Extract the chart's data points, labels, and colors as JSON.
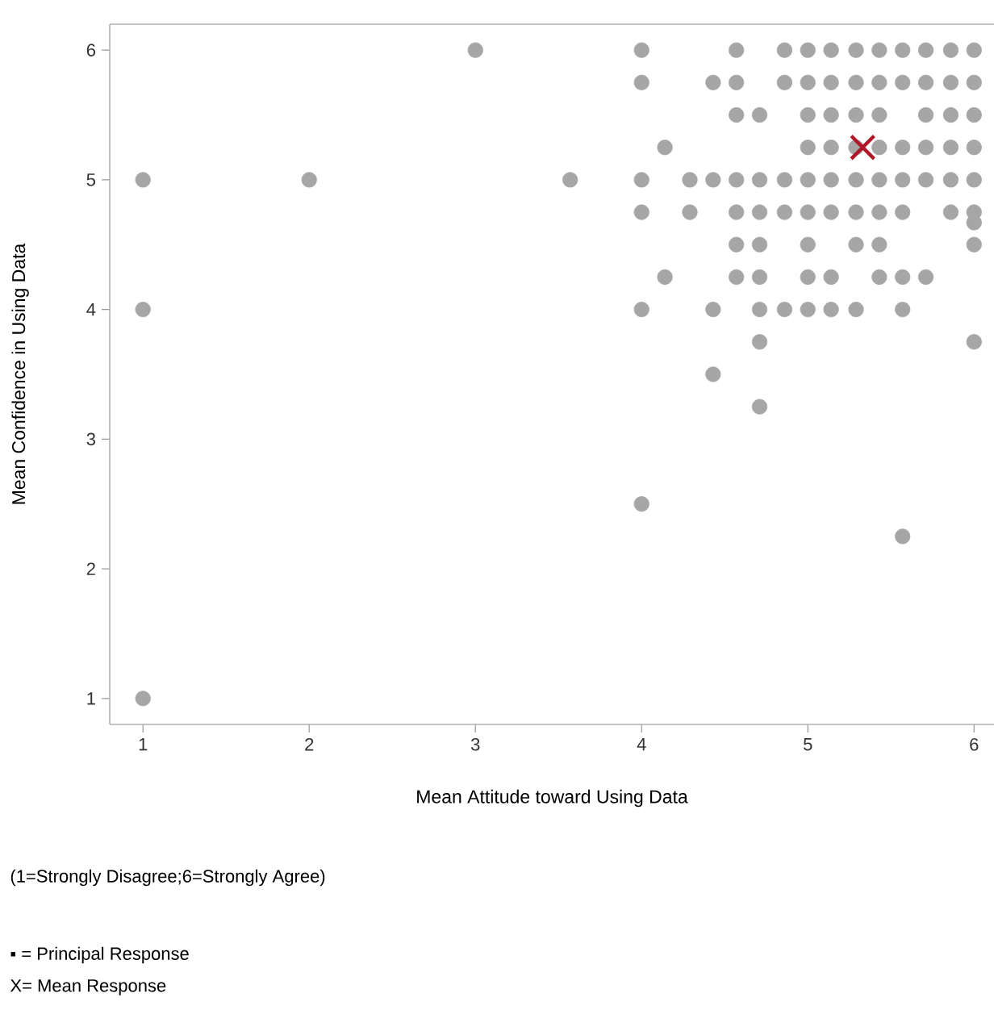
{
  "chart_data": {
    "type": "scatter",
    "xlabel": "Mean Attitude toward Using Data",
    "ylabel": "Mean Confidence in Using Data",
    "xlim": [
      0.8,
      6.12
    ],
    "ylim": [
      0.8,
      6.2
    ],
    "xticks": [
      1,
      2,
      3,
      4,
      5,
      6
    ],
    "yticks": [
      1,
      2,
      3,
      4,
      5,
      6
    ],
    "grid": false,
    "series": [
      {
        "color": "#a6a6a6",
        "marker": "circle",
        "x": [
          3,
          4,
          4.57,
          4.86,
          5,
          5.14,
          5.29,
          5.43,
          5.57,
          5.71,
          5.86,
          6,
          4,
          4.43,
          4.57,
          4.86,
          5,
          5.14,
          5.29,
          5.43,
          5.57,
          5.71,
          5.86,
          6,
          4.57,
          4.71,
          5,
          5.14,
          5.29,
          5.43,
          5.71,
          5.86,
          6,
          4.14,
          5,
          5.14,
          5.29,
          5.43,
          5.57,
          5.71,
          5.86,
          6,
          1,
          2,
          3.57,
          4,
          4.29,
          4.43,
          4.57,
          4.71,
          4.86,
          5,
          5.14,
          5.29,
          5.43,
          5.57,
          5.71,
          5.86,
          6,
          4,
          4.29,
          4.57,
          4.71,
          4.86,
          5,
          5.14,
          5.29,
          5.43,
          5.57,
          5.86,
          6,
          6,
          4.57,
          4.71,
          5,
          5.29,
          5.43,
          6,
          4.14,
          4.57,
          4.71,
          5,
          5.14,
          5.43,
          5.57,
          5.71,
          1,
          4,
          4.43,
          4.71,
          4.86,
          5,
          5.14,
          5.29,
          5.57,
          4.71,
          6,
          4.43,
          4.71,
          4,
          5.57,
          1
        ],
        "values": [
          6,
          6,
          6,
          6,
          6,
          6,
          6,
          6,
          6,
          6,
          6,
          6,
          5.75,
          5.75,
          5.75,
          5.75,
          5.75,
          5.75,
          5.75,
          5.75,
          5.75,
          5.75,
          5.75,
          5.75,
          5.5,
          5.5,
          5.5,
          5.5,
          5.5,
          5.5,
          5.5,
          5.5,
          5.5,
          5.25,
          5.25,
          5.25,
          5.25,
          5.25,
          5.25,
          5.25,
          5.25,
          5.25,
          5,
          5,
          5,
          5,
          5,
          5,
          5,
          5,
          5,
          5,
          5,
          5,
          5,
          5,
          5,
          5,
          5,
          4.75,
          4.75,
          4.75,
          4.75,
          4.75,
          4.75,
          4.75,
          4.75,
          4.75,
          4.75,
          4.75,
          4.75,
          4.67,
          4.5,
          4.5,
          4.5,
          4.5,
          4.5,
          4.5,
          4.25,
          4.25,
          4.25,
          4.25,
          4.25,
          4.25,
          4.25,
          4.25,
          4,
          4,
          4,
          4,
          4,
          4,
          4,
          4,
          4,
          3.75,
          3.75,
          3.5,
          3.25,
          2.5,
          2.25,
          1
        ]
      },
      {
        "color": "#b0182a",
        "marker": "cross",
        "x": [
          5.33
        ],
        "values": [
          5.25
        ]
      }
    ],
    "annotations": [
      "(1=Strongly Disagree;6=Strongly Agree)",
      "▪ = Principal Response",
      "X= Mean Response"
    ]
  }
}
